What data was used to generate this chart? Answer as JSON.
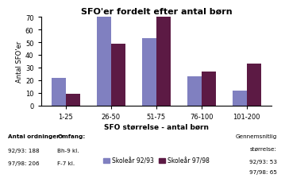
{
  "title": "SFO'er fordelt efter antal børn",
  "xlabel": "SFO størrelse - antal børn",
  "ylabel": "Antal SFO'er",
  "categories": [
    "1-25",
    "26-50",
    "51-75",
    "76-100",
    "101-200"
  ],
  "values_9293": [
    22,
    71,
    53,
    23,
    12
  ],
  "values_9798": [
    9,
    49,
    71,
    27,
    33
  ],
  "color_9293": "#8080C0",
  "color_9798": "#5C1A44",
  "ylim": [
    0,
    70
  ],
  "yticks": [
    0,
    10,
    20,
    30,
    40,
    50,
    60,
    70
  ],
  "legend_9293": "Skoleår 92/93",
  "legend_9798": "Skoleår 97/98",
  "footer_left1": "Antal ordninger:",
  "footer_left2": "92/93: 188",
  "footer_left3": "97/98: 206",
  "footer_mid1": "Omfang:",
  "footer_mid2": "Bh-9 kl.",
  "footer_mid3": "F-7 kl.",
  "footer_right1": "Gennemsnitlig",
  "footer_right2": "størrelse:",
  "footer_right3": "92/93: 53",
  "footer_right4": "97/98: 65"
}
